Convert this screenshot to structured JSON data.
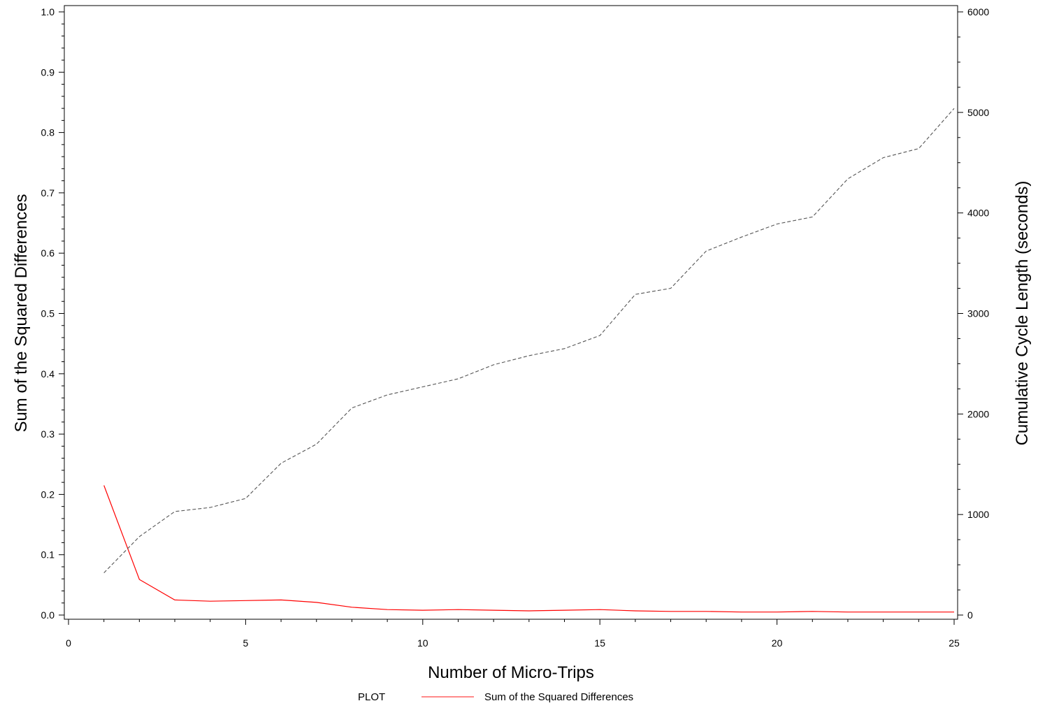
{
  "chart_data": {
    "type": "line",
    "xlabel": "Number of Micro-Trips",
    "ylabel_left": "Sum of the Squared Differences",
    "ylabel_right": "Cumulative Cycle Length (seconds)",
    "xlim": [
      0,
      25
    ],
    "ylim_left": [
      0,
      1.0
    ],
    "ylim_right": [
      0,
      6000
    ],
    "x_ticks": [
      0,
      5,
      10,
      15,
      20,
      25
    ],
    "y_left_ticks": [
      "0.0",
      "0.1",
      "0.2",
      "0.3",
      "0.4",
      "0.5",
      "0.6",
      "0.7",
      "0.8",
      "0.9",
      "1.0"
    ],
    "y_right_ticks": [
      0,
      1000,
      2000,
      3000,
      4000,
      5000,
      6000
    ],
    "x": [
      1,
      2,
      3,
      4,
      5,
      6,
      7,
      8,
      9,
      10,
      11,
      12,
      13,
      14,
      15,
      16,
      17,
      18,
      19,
      20,
      21,
      22,
      23,
      24,
      25
    ],
    "series": [
      {
        "name": "Sum of the Squared Differences",
        "axis": "left",
        "color": "#ff0000",
        "style": "solid",
        "values": [
          0.215,
          0.059,
          0.025,
          0.023,
          0.024,
          0.025,
          0.021,
          0.013,
          0.009,
          0.008,
          0.009,
          0.008,
          0.007,
          0.008,
          0.009,
          0.007,
          0.006,
          0.006,
          0.005,
          0.005,
          0.006,
          0.005,
          0.005,
          0.005,
          0.005
        ]
      },
      {
        "axis": "right",
        "color": "#555555",
        "style": "dashed",
        "values": [
          420,
          780,
          1030,
          1070,
          1160,
          1510,
          1700,
          2060,
          2190,
          2270,
          2350,
          2490,
          2580,
          2650,
          2780,
          3190,
          3250,
          3620,
          3760,
          3890,
          3960,
          4340,
          4550,
          4640,
          5040
        ]
      }
    ],
    "legend": {
      "placement": "bottom",
      "title": "PLOT",
      "entries": [
        "Sum of the Squared Differences"
      ]
    },
    "grid": false
  }
}
